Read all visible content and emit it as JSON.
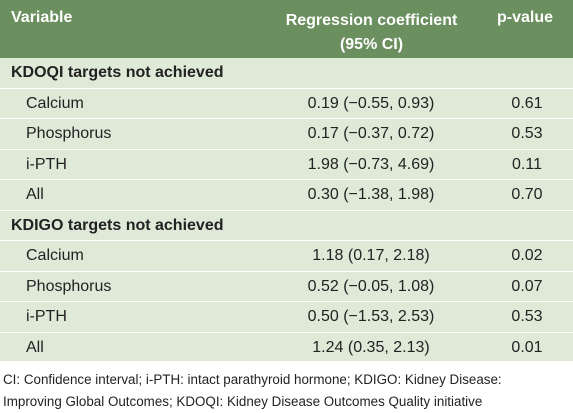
{
  "header": {
    "variable": "Variable",
    "coef_line1": "Regression coefficient",
    "coef_line2": "(95% CI)",
    "pvalue": "p-value"
  },
  "sections": [
    {
      "title": "KDOQI targets not achieved",
      "rows": [
        {
          "variable": "Calcium",
          "coef": "0.19 (−0.55, 0.93)",
          "p": "0.61"
        },
        {
          "variable": "Phosphorus",
          "coef": "0.17 (−0.37, 0.72)",
          "p": "0.53"
        },
        {
          "variable": "i-PTH",
          "coef": "1.98 (−0.73, 4.69)",
          "p": "0.11"
        },
        {
          "variable": "All",
          "coef": "0.30 (−1.38, 1.98)",
          "p": "0.70"
        }
      ]
    },
    {
      "title": "KDIGO targets not achieved",
      "rows": [
        {
          "variable": "Calcium",
          "coef": "1.18 (0.17, 2.18)",
          "p": "0.02"
        },
        {
          "variable": "Phosphorus",
          "coef": "0.52 (−0.05, 1.08)",
          "p": "0.07"
        },
        {
          "variable": "i-PTH",
          "coef": "0.50 (−1.53, 2.53)",
          "p": "0.53"
        },
        {
          "variable": "All",
          "coef": "1.24 (0.35, 2.13)",
          "p": "0.01"
        }
      ]
    }
  ],
  "footnote": {
    "line1": "CI: Confidence interval; i-PTH: intact parathyroid hormone; KDIGO: Kidney Disease:",
    "line2": "Improving Global Outcomes; KDOQI: Kidney Disease Outcomes Quality initiative"
  },
  "colors": {
    "header_bg": "#6b8f5e",
    "body_bg": "#dfe9d8"
  }
}
